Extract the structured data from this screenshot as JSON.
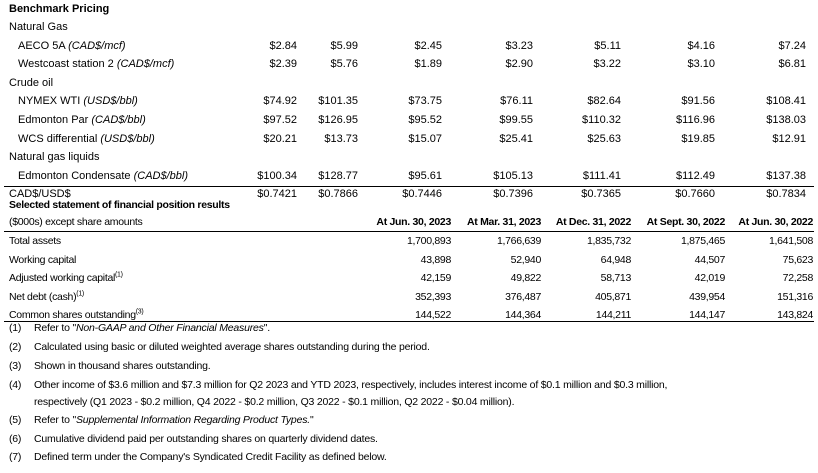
{
  "benchmark": {
    "title": "Benchmark Pricing",
    "rows": [
      {
        "type": "group",
        "label": "Natural Gas"
      },
      {
        "type": "item",
        "label": "AECO 5A ",
        "unit": "(CAD$/mcf)",
        "values": [
          "$2.84",
          "$5.99",
          "$2.45",
          "$3.23",
          "$5.11",
          "$4.16",
          "$7.24"
        ]
      },
      {
        "type": "item",
        "label": "Westcoast station 2 ",
        "unit": "(CAD$/mcf)",
        "values": [
          "$2.39",
          "$5.76",
          "$1.89",
          "$2.90",
          "$3.22",
          "$3.10",
          "$6.81"
        ]
      },
      {
        "type": "group",
        "label": "Crude oil"
      },
      {
        "type": "item",
        "label": "NYMEX WTI ",
        "unit": "(USD$/bbl)",
        "values": [
          "$74.92",
          "$101.35",
          "$73.75",
          "$76.11",
          "$82.64",
          "$91.56",
          "$108.41"
        ]
      },
      {
        "type": "item",
        "label": "Edmonton Par ",
        "unit": "(CAD$/bbl)",
        "values": [
          "$97.52",
          "$126.95",
          "$95.52",
          "$99.55",
          "$110.32",
          "$116.96",
          "$138.03"
        ]
      },
      {
        "type": "item",
        "label": "WCS differential ",
        "unit": "(USD$/bbl)",
        "values": [
          "$20.21",
          "$13.73",
          "$15.07",
          "$25.41",
          "$25.63",
          "$19.85",
          "$12.91"
        ]
      },
      {
        "type": "group",
        "label": "Natural gas liquids"
      },
      {
        "type": "item",
        "label": "Edmonton Condensate ",
        "unit": "(CAD$/bbl)",
        "values": [
          "$100.34",
          "$128.77",
          "$95.61",
          "$105.13",
          "$111.41",
          "$112.49",
          "$137.38"
        ]
      },
      {
        "type": "group",
        "label": "CAD$/USD$",
        "values": [
          "$0.7421",
          "$0.7866",
          "$0.7446",
          "$0.7396",
          "$0.7365",
          "$0.7660",
          "$0.7834"
        ]
      }
    ]
  },
  "position": {
    "title": "Selected statement of financial position results",
    "subtitle": "($000s) except share amounts",
    "columns": [
      "At Jun. 30, 2023",
      "At Mar. 31, 2023",
      "At Dec. 31, 2022",
      "At Sept. 30, 2022",
      "At Jun. 30, 2022"
    ],
    "rows": [
      {
        "label": "Total assets",
        "sup": "",
        "values": [
          "1,700,893",
          "1,766,639",
          "1,835,732",
          "1,875,465",
          "1,641,508"
        ]
      },
      {
        "label": "Working capital",
        "sup": "",
        "values": [
          "43,898",
          "52,940",
          "64,948",
          "44,507",
          "75,623"
        ]
      },
      {
        "label": "Adjusted working capital",
        "sup": "(1)",
        "values": [
          "42,159",
          "49,822",
          "58,713",
          "42,019",
          "72,258"
        ]
      },
      {
        "label": "Net debt (cash)",
        "sup": "(1)",
        "values": [
          "352,393",
          "376,487",
          "405,871",
          "439,954",
          "151,316"
        ]
      },
      {
        "label": "Common shares outstanding",
        "sup": "(3)",
        "values": [
          "144,522",
          "144,364",
          "144,211",
          "144,147",
          "143,824"
        ]
      }
    ]
  },
  "footnotes": [
    {
      "num": "(1)",
      "pre": "Refer to \"",
      "ital": "Non-GAAP and Other Financial Measures",
      "post": "\"."
    },
    {
      "num": "(2)",
      "pre": "Calculated using basic or diluted weighted average shares outstanding during the period.",
      "ital": "",
      "post": ""
    },
    {
      "num": "(3)",
      "pre": "Shown in thousand shares outstanding.",
      "ital": "",
      "post": ""
    },
    {
      "num": "(4)",
      "pre": "Other income of $3.6 million and $7.3 million for Q2 2023 and YTD 2023, respectively, includes interest income of $0.1 million and $0.3 million,\nrespectively (Q1 2023 - $0.2 million, Q4 2022 - $0.2 million, Q3 2022 - $0.1 million, Q2 2022 - $0.04 million).",
      "ital": "",
      "post": ""
    },
    {
      "num": "(5)",
      "pre": "Refer to \"",
      "ital": "Supplemental Information Regarding Product Types.",
      "post": "\""
    },
    {
      "num": "(6)",
      "pre": "Cumulative dividend paid per outstanding shares on quarterly dividend dates.",
      "ital": "",
      "post": ""
    },
    {
      "num": "(7)",
      "pre": "Defined term under the Company's Syndicated Credit Facility as defined below.",
      "ital": "",
      "post": ""
    }
  ]
}
